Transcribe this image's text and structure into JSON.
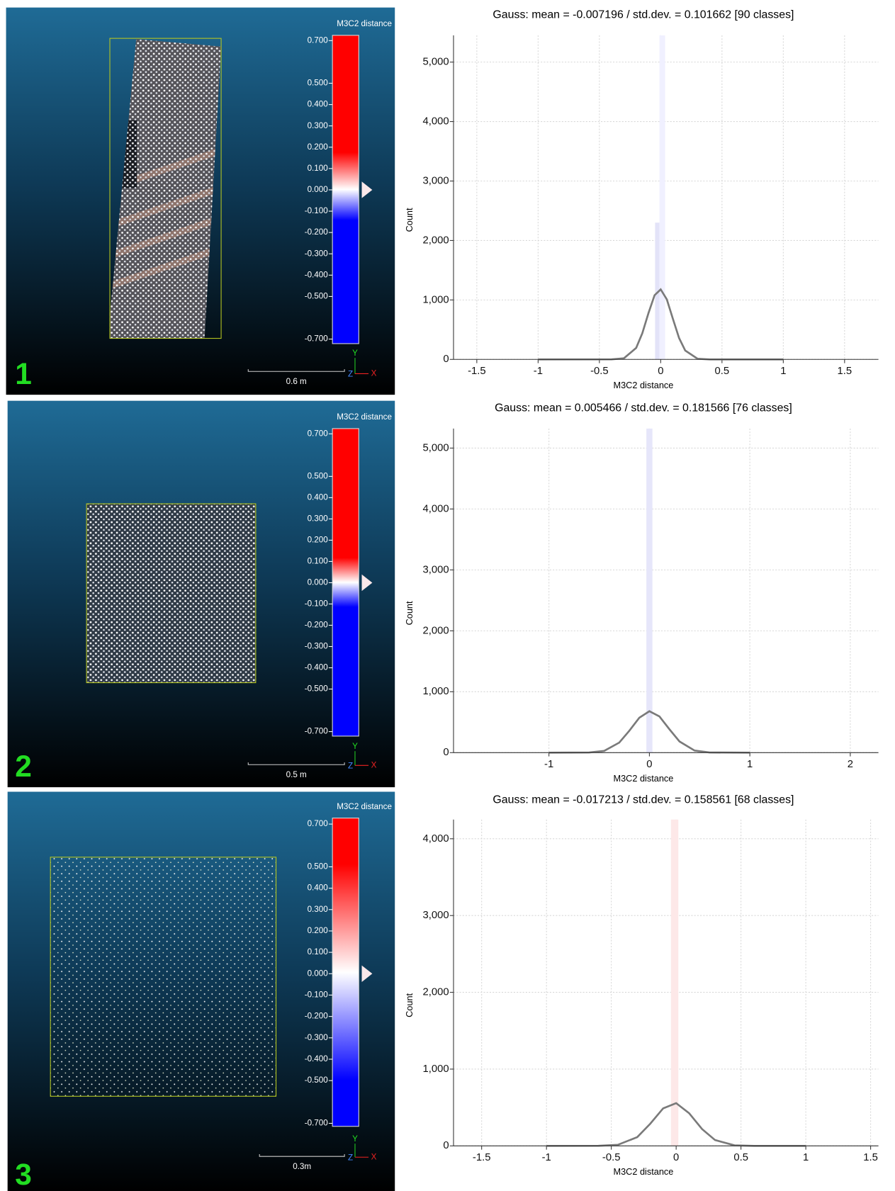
{
  "viewports": [
    {
      "number": "1",
      "scale_title": "M3C2 distance",
      "scale_bar": "0.6 m",
      "axis_labels": [
        "Y",
        "Z",
        "X"
      ],
      "scale_ticks": [
        {
          "value": 0.7,
          "label": "0.700"
        },
        {
          "value": 0.5,
          "label": "0.500"
        },
        {
          "value": 0.4,
          "label": "0.400"
        },
        {
          "value": 0.3,
          "label": "0.300"
        },
        {
          "value": 0.2,
          "label": "0.200"
        },
        {
          "value": 0.1,
          "label": "0.100"
        },
        {
          "value": 0,
          "label": "0.000"
        },
        {
          "value": -0.1,
          "label": "-0.100"
        },
        {
          "value": -0.2,
          "label": "-0.200"
        },
        {
          "value": -0.3,
          "label": "-0.300"
        },
        {
          "value": -0.4,
          "label": "-0.400"
        },
        {
          "value": -0.5,
          "label": "-0.500"
        },
        {
          "value": -0.7,
          "label": "-0.700"
        }
      ]
    },
    {
      "number": "2",
      "scale_title": "M3C2 distance",
      "scale_bar": "0.5 m",
      "axis_labels": [
        "Y",
        "Z",
        "X"
      ],
      "scale_ticks": [
        {
          "value": 0.7,
          "label": "0.700"
        },
        {
          "value": 0.5,
          "label": "0.500"
        },
        {
          "value": 0.4,
          "label": "0.400"
        },
        {
          "value": 0.3,
          "label": "0.300"
        },
        {
          "value": 0.2,
          "label": "0.200"
        },
        {
          "value": 0.1,
          "label": "0.100"
        },
        {
          "value": 0,
          "label": "0.000"
        },
        {
          "value": -0.1,
          "label": "-0.100"
        },
        {
          "value": -0.2,
          "label": "-0.200"
        },
        {
          "value": -0.3,
          "label": "-0.300"
        },
        {
          "value": -0.4,
          "label": "-0.400"
        },
        {
          "value": -0.5,
          "label": "-0.500"
        },
        {
          "value": -0.7,
          "label": "-0.700"
        }
      ]
    },
    {
      "number": "3",
      "scale_title": "M3C2 distance",
      "scale_bar": "0.3m",
      "axis_labels": [
        "Y",
        "Z",
        "X"
      ],
      "scale_ticks": [
        {
          "value": 0.7,
          "label": "0.700"
        },
        {
          "value": 0.5,
          "label": "0.500"
        },
        {
          "value": 0.4,
          "label": "0.400"
        },
        {
          "value": 0.3,
          "label": "0.300"
        },
        {
          "value": 0.2,
          "label": "0.200"
        },
        {
          "value": 0.1,
          "label": "0.100"
        },
        {
          "value": 0,
          "label": "0.000"
        },
        {
          "value": -0.1,
          "label": "-0.100"
        },
        {
          "value": -0.2,
          "label": "-0.200"
        },
        {
          "value": -0.3,
          "label": "-0.300"
        },
        {
          "value": -0.4,
          "label": "-0.400"
        },
        {
          "value": -0.5,
          "label": "-0.500"
        },
        {
          "value": -0.7,
          "label": "-0.700"
        }
      ]
    }
  ],
  "chart_data": [
    {
      "type": "histogram",
      "title": "Gauss: mean = -0.007196 / std.dev. = 0.101662 [90 classes]",
      "x_label": "M3C2 distance",
      "y_label": "Count",
      "bins": [
        -0.046,
        -0.01,
        0.036
      ],
      "values": [
        2300,
        5450
      ],
      "colors": [
        "#e3e3f8",
        "#f0f0ff"
      ],
      "line": {
        "x": [
          -1,
          -0.4,
          -0.3,
          -0.2,
          -0.15,
          -0.1,
          -0.05,
          0,
          0.05,
          0.1,
          0.15,
          0.2,
          0.3,
          0.4,
          1
        ],
        "values": [
          0,
          1,
          19,
          193,
          439,
          777,
          1079,
          1177,
          1009,
          679,
          359,
          149,
          12,
          0,
          0
        ],
        "color": "#7a7a7a"
      },
      "xlim": [
        -1.69,
        1.776
      ],
      "ylim": [
        0,
        5450
      ],
      "xticks": [
        -1.5,
        -1,
        -0.5,
        0,
        0.5,
        1,
        1.5
      ],
      "yticks": [
        0,
        {
          "value": 1000,
          "label": "1,000"
        },
        {
          "value": 2000,
          "label": "2,000"
        },
        {
          "value": 3000,
          "label": "3,000"
        },
        {
          "value": 4000,
          "label": "4,000"
        },
        {
          "value": 5000,
          "label": "5,000"
        }
      ],
      "grid": true
    },
    {
      "type": "histogram",
      "title": "Gauss: mean = 0.005466 / std.dev. = 0.181566 [76 classes]",
      "x_label": "M3C2 distance",
      "y_label": "Count",
      "bins": [
        -0.03,
        0.03
      ],
      "values": [
        5320
      ],
      "colors": [
        "#e6e6fa"
      ],
      "line": {
        "x": [
          -1,
          -0.6,
          -0.45,
          -0.3,
          -0.2,
          -0.1,
          0,
          0.1,
          0.2,
          0.3,
          0.45,
          0.6,
          1
        ],
        "values": [
          0,
          3,
          29,
          165,
          359,
          574,
          680,
          594,
          383,
          183,
          34,
          3,
          0
        ],
        "color": "#7a7a7a"
      },
      "xlim": [
        -1.95,
        2.28
      ],
      "ylim": [
        0,
        5320
      ],
      "xticks": [
        -1,
        0,
        1,
        2
      ],
      "yticks": [
        0,
        {
          "value": 1000,
          "label": "1,000"
        },
        {
          "value": 2000,
          "label": "2,000"
        },
        {
          "value": 3000,
          "label": "3,000"
        },
        {
          "value": 4000,
          "label": "4,000"
        },
        {
          "value": 5000,
          "label": "5,000"
        }
      ],
      "grid": true
    },
    {
      "type": "histogram",
      "title": "Gauss: mean = -0.017213 / std.dev. = 0.158561 [68 classes]",
      "x_label": "M3C2 distance",
      "y_label": "Count",
      "bins": [
        -0.04,
        0.017
      ],
      "values": [
        4250
      ],
      "colors": [
        "#fde8e8"
      ],
      "line": {
        "x": [
          -1,
          -0.6,
          -0.45,
          -0.3,
          -0.2,
          -0.1,
          0,
          0.1,
          0.2,
          0.3,
          0.45,
          0.6,
          1
        ],
        "values": [
          0,
          1,
          14,
          114,
          288,
          489,
          557,
          426,
          219,
          76,
          7,
          0,
          0
        ],
        "color": "#7a7a7a"
      },
      "xlim": [
        -1.717,
        1.56
      ],
      "ylim": [
        0,
        4250
      ],
      "xticks": [
        -1.5,
        -1,
        -0.5,
        0,
        0.5,
        1,
        1.5
      ],
      "yticks": [
        0,
        {
          "value": 1000,
          "label": "1,000"
        },
        {
          "value": 2000,
          "label": "2,000"
        },
        {
          "value": 3000,
          "label": "3,000"
        },
        {
          "value": 4000,
          "label": "4,000"
        }
      ],
      "grid": true
    }
  ]
}
